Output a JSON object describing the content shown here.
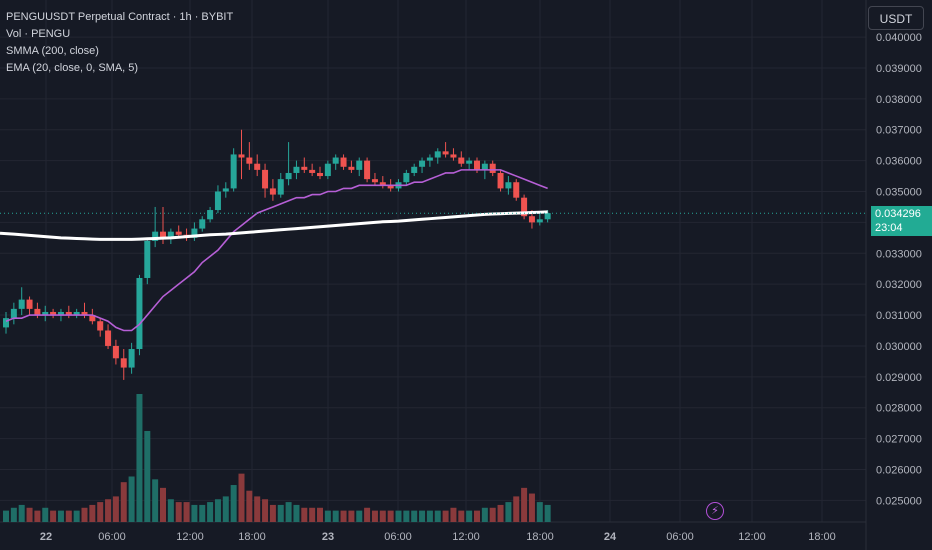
{
  "legend": {
    "title": "PENGUUSDT Perpetual Contract · 1h · BYBIT",
    "volume": "Vol · PENGU",
    "smma": "SMMA (200, close)",
    "ema": "EMA (20, close, 0, SMA, 5)"
  },
  "currency_button": "USDT",
  "price_badge": {
    "price": "0.034296",
    "countdown": "23:04"
  },
  "alert_icon": "lightning-bolt-icon",
  "colors": {
    "background": "#161a25",
    "up": "#26a69a",
    "down": "#ef5350",
    "ema": "#b65fd6",
    "smma": "#ffffff",
    "grid": "#232632",
    "badge": "#22ab94"
  },
  "chart_data": {
    "type": "candlestick",
    "ylim": [
      0.0243,
      0.0412
    ],
    "y_ticks": [
      "0.040000",
      "0.039000",
      "0.038000",
      "0.037000",
      "0.036000",
      "0.035000",
      "0.034000",
      "0.033000",
      "0.032000",
      "0.031000",
      "0.030000",
      "0.029000",
      "0.028000",
      "0.027000",
      "0.026000",
      "0.025000"
    ],
    "x_ticks": [
      "22",
      "06:00",
      "12:00",
      "18:00",
      "23",
      "06:00",
      "12:00",
      "18:00",
      "24",
      "06:00",
      "12:00",
      "18:00"
    ],
    "last_price": 0.034296,
    "ohlc": [
      [
        0.0306,
        0.0311,
        0.0304,
        0.0309
      ],
      [
        0.0309,
        0.0314,
        0.0307,
        0.0312
      ],
      [
        0.0312,
        0.0319,
        0.031,
        0.0315
      ],
      [
        0.0315,
        0.0316,
        0.031,
        0.0312
      ],
      [
        0.0312,
        0.0314,
        0.0309,
        0.031
      ],
      [
        0.031,
        0.0313,
        0.0308,
        0.0311
      ],
      [
        0.0311,
        0.0312,
        0.0309,
        0.031
      ],
      [
        0.031,
        0.0312,
        0.0308,
        0.0311
      ],
      [
        0.0311,
        0.0313,
        0.0309,
        0.031
      ],
      [
        0.031,
        0.0312,
        0.0309,
        0.0311
      ],
      [
        0.0311,
        0.0314,
        0.0309,
        0.031
      ],
      [
        0.031,
        0.0312,
        0.0307,
        0.0308
      ],
      [
        0.0308,
        0.0309,
        0.0303,
        0.0305
      ],
      [
        0.0305,
        0.0307,
        0.0299,
        0.03
      ],
      [
        0.03,
        0.0302,
        0.0294,
        0.0296
      ],
      [
        0.0296,
        0.0299,
        0.0289,
        0.0293
      ],
      [
        0.0293,
        0.0301,
        0.0291,
        0.0299
      ],
      [
        0.0299,
        0.0323,
        0.0297,
        0.0322
      ],
      [
        0.0322,
        0.0335,
        0.032,
        0.0334
      ],
      [
        0.0334,
        0.0345,
        0.0332,
        0.0337
      ],
      [
        0.0337,
        0.0345,
        0.0333,
        0.0335
      ],
      [
        0.0335,
        0.0338,
        0.0333,
        0.0337
      ],
      [
        0.0337,
        0.0339,
        0.0335,
        0.0336
      ],
      [
        0.0336,
        0.0338,
        0.0334,
        0.0335
      ],
      [
        0.0335,
        0.034,
        0.0334,
        0.0338
      ],
      [
        0.0338,
        0.0342,
        0.0337,
        0.0341
      ],
      [
        0.0341,
        0.0345,
        0.034,
        0.0344
      ],
      [
        0.0344,
        0.0352,
        0.0343,
        0.035
      ],
      [
        0.035,
        0.0353,
        0.0348,
        0.0351
      ],
      [
        0.0351,
        0.0364,
        0.035,
        0.0362
      ],
      [
        0.0362,
        0.037,
        0.0354,
        0.0361
      ],
      [
        0.0361,
        0.0366,
        0.0357,
        0.0359
      ],
      [
        0.0359,
        0.0362,
        0.0355,
        0.0357
      ],
      [
        0.0357,
        0.0359,
        0.0348,
        0.0351
      ],
      [
        0.0351,
        0.0354,
        0.0347,
        0.0349
      ],
      [
        0.0349,
        0.0356,
        0.0348,
        0.0354
      ],
      [
        0.0354,
        0.0366,
        0.0352,
        0.0356
      ],
      [
        0.0356,
        0.036,
        0.0354,
        0.0358
      ],
      [
        0.0358,
        0.0361,
        0.0356,
        0.0357
      ],
      [
        0.0357,
        0.0359,
        0.0355,
        0.0356
      ],
      [
        0.0356,
        0.0358,
        0.0354,
        0.0355
      ],
      [
        0.0355,
        0.036,
        0.0354,
        0.0359
      ],
      [
        0.0359,
        0.0362,
        0.0357,
        0.0361
      ],
      [
        0.0361,
        0.0362,
        0.0357,
        0.0358
      ],
      [
        0.0358,
        0.036,
        0.0356,
        0.0357
      ],
      [
        0.0357,
        0.0361,
        0.0355,
        0.036
      ],
      [
        0.036,
        0.0361,
        0.0353,
        0.0354
      ],
      [
        0.0354,
        0.0356,
        0.0352,
        0.0353
      ],
      [
        0.0353,
        0.0355,
        0.0351,
        0.0352
      ],
      [
        0.0352,
        0.0354,
        0.035,
        0.0351
      ],
      [
        0.0351,
        0.0354,
        0.035,
        0.0353
      ],
      [
        0.0353,
        0.0357,
        0.0352,
        0.0356
      ],
      [
        0.0356,
        0.0359,
        0.0355,
        0.0358
      ],
      [
        0.0358,
        0.0361,
        0.0356,
        0.036
      ],
      [
        0.036,
        0.0362,
        0.0358,
        0.0361
      ],
      [
        0.0361,
        0.0364,
        0.0359,
        0.0363
      ],
      [
        0.0363,
        0.0366,
        0.0361,
        0.0362
      ],
      [
        0.0362,
        0.0364,
        0.036,
        0.0361
      ],
      [
        0.0361,
        0.0363,
        0.0358,
        0.0359
      ],
      [
        0.0359,
        0.0361,
        0.0357,
        0.036
      ],
      [
        0.036,
        0.0361,
        0.0356,
        0.0357
      ],
      [
        0.0357,
        0.036,
        0.0354,
        0.0359
      ],
      [
        0.0359,
        0.036,
        0.0355,
        0.0356
      ],
      [
        0.0356,
        0.0357,
        0.035,
        0.0351
      ],
      [
        0.0351,
        0.0355,
        0.0349,
        0.0353
      ],
      [
        0.0353,
        0.0354,
        0.0347,
        0.0348
      ],
      [
        0.0348,
        0.0349,
        0.0341,
        0.0342
      ],
      [
        0.0342,
        0.0344,
        0.0338,
        0.034
      ],
      [
        0.034,
        0.0343,
        0.0339,
        0.0341
      ],
      [
        0.0341,
        0.0344,
        0.034,
        0.0343
      ]
    ],
    "volume": [
      4,
      5,
      6,
      5,
      4,
      5,
      4,
      4,
      4,
      4,
      5,
      6,
      7,
      8,
      9,
      14,
      16,
      45,
      32,
      15,
      12,
      8,
      7,
      7,
      6,
      6,
      7,
      8,
      9,
      13,
      17,
      11,
      9,
      8,
      6,
      6,
      7,
      6,
      5,
      5,
      5,
      4,
      4,
      4,
      4,
      4,
      5,
      4,
      4,
      4,
      4,
      4,
      4,
      4,
      4,
      4,
      4,
      5,
      4,
      4,
      4,
      5,
      5,
      6,
      7,
      9,
      12,
      10,
      7,
      6
    ],
    "ema": [
      0.0308,
      0.0309,
      0.0309,
      0.031,
      0.031,
      0.031,
      0.031,
      0.031,
      0.031,
      0.031,
      0.031,
      0.031,
      0.0309,
      0.0308,
      0.0306,
      0.0305,
      0.0305,
      0.0307,
      0.031,
      0.0313,
      0.0316,
      0.0318,
      0.032,
      0.0322,
      0.0324,
      0.0327,
      0.0329,
      0.0331,
      0.0334,
      0.0337,
      0.0339,
      0.0341,
      0.0343,
      0.0344,
      0.0345,
      0.0346,
      0.0347,
      0.0348,
      0.0348,
      0.0349,
      0.0349,
      0.035,
      0.035,
      0.0351,
      0.0351,
      0.0352,
      0.0352,
      0.0352,
      0.0352,
      0.0352,
      0.0352,
      0.0352,
      0.0353,
      0.0353,
      0.0354,
      0.0355,
      0.0356,
      0.0356,
      0.0357,
      0.0357,
      0.0357,
      0.0357,
      0.0357,
      0.0357,
      0.0356,
      0.0355,
      0.0354,
      0.0353,
      0.0352,
      0.0351
    ],
    "smma": [
      0.03365,
      0.03362,
      0.0336,
      0.03358,
      0.03356,
      0.03354,
      0.03352,
      0.0335,
      0.03349,
      0.03348,
      0.03347,
      0.03346,
      0.03345,
      0.03345,
      0.03345,
      0.03345,
      0.03345,
      0.03346,
      0.03347,
      0.03348,
      0.03349,
      0.0335,
      0.03352,
      0.03354,
      0.03356,
      0.03358,
      0.0336,
      0.03361,
      0.03362,
      0.03364,
      0.03366,
      0.03368,
      0.0337,
      0.03372,
      0.03374,
      0.03376,
      0.03378,
      0.0338,
      0.03382,
      0.03384,
      0.03386,
      0.03388,
      0.0339,
      0.03392,
      0.03394,
      0.03396,
      0.03398,
      0.034,
      0.03402,
      0.03403,
      0.03404,
      0.03406,
      0.03408,
      0.0341,
      0.03412,
      0.03414,
      0.03416,
      0.03418,
      0.0342,
      0.03422,
      0.03424,
      0.03426,
      0.03427,
      0.03428,
      0.03429,
      0.0343,
      0.03431,
      0.03432,
      0.03433,
      0.03434
    ]
  }
}
